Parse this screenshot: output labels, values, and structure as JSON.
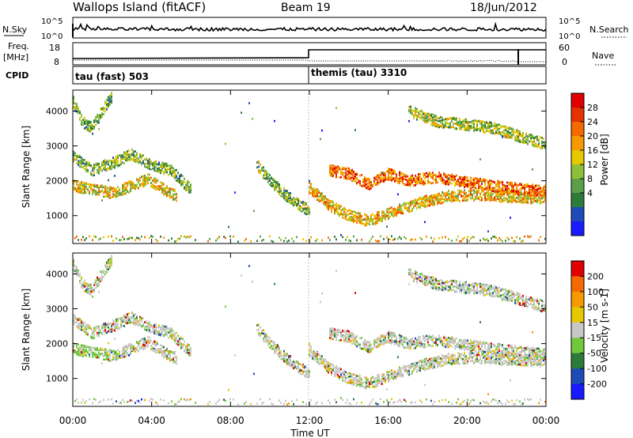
{
  "header": {
    "station": "Wallops Island (fitACF)",
    "beam": "Beam 19",
    "date": "18/Jun/2012"
  },
  "strips": {
    "nsky_label": "N.Sky",
    "nsearch_label": "N.Search",
    "noise_ticks_left": [
      "10^5",
      "10^0"
    ],
    "noise_ticks_right": [
      "10^5",
      "10^0"
    ],
    "freq_label": "Freq.",
    "freq_unit": "[MHz]",
    "freq_ticks": [
      "18",
      "8"
    ],
    "nave_label": "Nave",
    "nave_ticks": [
      "60",
      "0"
    ],
    "cpid_label": "CPID",
    "cpid_modes": [
      {
        "name": "tau (fast) 503",
        "start_hour": 0
      },
      {
        "name": "themis (tau) 3310",
        "start_hour": 12
      }
    ]
  },
  "chart_data": [
    {
      "type": "heatmap",
      "name": "power",
      "ylabel": "Slant Range [km]",
      "y_ticks": [
        1000,
        2000,
        3000,
        4000
      ],
      "ylim": [
        200,
        4600
      ],
      "xlim": [
        0,
        24
      ],
      "colorbar": {
        "label": "Power [dB]",
        "ticks": [
          "28",
          "24",
          "20",
          "16",
          "12",
          "8",
          "4"
        ],
        "colors": [
          "#1a1aff",
          "#1e4bb5",
          "#2d7b3a",
          "#5c9e4a",
          "#8cbf3a",
          "#e6c800",
          "#f59a00",
          "#f46a00",
          "#e63200",
          "#e00000"
        ]
      },
      "bands": [
        {
          "x": [
            0.0,
            1.0,
            2.0,
            3.0,
            3.8,
            4.5,
            5.3
          ],
          "y": [
            1850,
            1750,
            1650,
            1850,
            2050,
            1800,
            1550
          ],
          "level": 0.55
        },
        {
          "x": [
            0.0,
            1.0,
            2.0,
            3.0,
            4.0,
            5.0,
            6.0
          ],
          "y": [
            2700,
            2300,
            2500,
            2750,
            2450,
            2300,
            1750
          ],
          "level": 0.4
        },
        {
          "x": [
            0.0,
            0.5,
            1.0,
            1.5,
            2.0
          ],
          "y": [
            4300,
            3700,
            3500,
            4000,
            4400
          ],
          "level": 0.35
        },
        {
          "x": [
            9.3,
            10.0,
            10.8,
            11.5,
            12.0
          ],
          "y": [
            2500,
            2000,
            1600,
            1300,
            1150
          ],
          "level": 0.4
        },
        {
          "x": [
            12.0,
            13.0,
            14.0,
            15.0,
            16.0,
            17.5,
            19.0,
            20.5,
            22.0,
            24.0
          ],
          "y": [
            1800,
            1300,
            1000,
            850,
            1050,
            1350,
            1550,
            1600,
            1550,
            1500
          ],
          "level": 0.6
        },
        {
          "x": [
            13.0,
            14.0,
            15.0,
            16.0,
            17.0,
            18.5,
            20.0,
            22.0,
            24.0
          ],
          "y": [
            2300,
            2200,
            1900,
            2200,
            2000,
            2100,
            1950,
            1800,
            1700
          ],
          "level": 0.75
        },
        {
          "x": [
            17.0,
            18.5,
            20.0,
            21.5,
            23.0,
            24.0
          ],
          "y": [
            4000,
            3700,
            3600,
            3500,
            3200,
            3050
          ],
          "level": 0.45
        }
      ]
    },
    {
      "type": "heatmap",
      "name": "velocity",
      "ylabel": "Slant Range [km]",
      "y_ticks": [
        1000,
        2000,
        3000,
        4000
      ],
      "ylim": [
        200,
        4600
      ],
      "xlim": [
        0,
        24
      ],
      "x_ticks": [
        "00:00",
        "04:00",
        "08:00",
        "12:00",
        "16:00",
        "20:00",
        "00:00"
      ],
      "xlabel": "Time UT",
      "colorbar": {
        "label": "Velocity [m s-1]",
        "ticks": [
          "200",
          "100",
          "50",
          "15",
          "-15",
          "-50",
          "-100",
          "-200"
        ],
        "colors": [
          "#1a1aff",
          "#1e4bb5",
          "#2d7b3a",
          "#70c83c",
          "#c8c8c8",
          "#e6c800",
          "#f59a00",
          "#f46a00",
          "#e00000"
        ]
      }
    }
  ]
}
